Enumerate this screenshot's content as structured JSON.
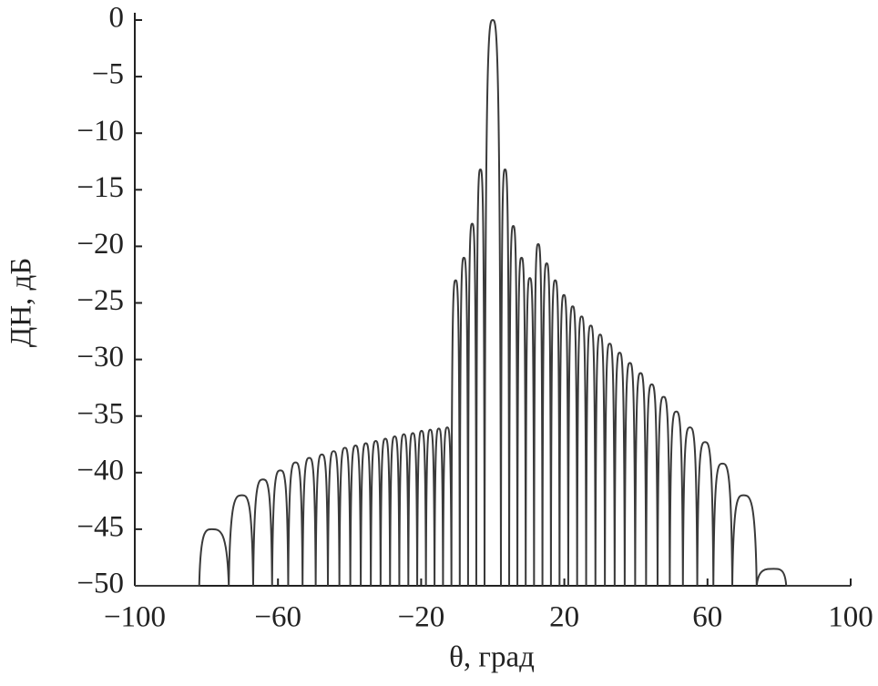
{
  "chart_data": {
    "type": "line",
    "xlabel": "θ, град",
    "ylabel": "ДН, дБ",
    "x": [
      -100,
      -82,
      -78.5,
      -73.74,
      -70.05,
      -66.93,
      -64.16,
      -61.64,
      -59.32,
      -57.14,
      -55.08,
      -53.13,
      -51.26,
      -49.46,
      -47.73,
      -46.05,
      -44.43,
      -42.84,
      -41.3,
      -39.79,
      -38.32,
      -36.87,
      -35.45,
      -34.06,
      -32.68,
      -31.33,
      -30,
      -28.69,
      -27.39,
      -26.1,
      -24.83,
      -23.58,
      -22.33,
      -21.1,
      -19.88,
      -18.66,
      -17.46,
      -16.26,
      -15.07,
      -13.89,
      -12.71,
      -11.54,
      -10.37,
      -9.21,
      -8.05,
      -6.89,
      -5.74,
      -4.59,
      -3.44,
      -2.29,
      0,
      2.29,
      3.44,
      4.59,
      5.74,
      6.89,
      8.05,
      9.21,
      10.37,
      11.54,
      12.71,
      13.89,
      15.07,
      16.26,
      17.46,
      18.66,
      19.88,
      21.1,
      22.33,
      23.58,
      24.83,
      26.1,
      27.39,
      28.69,
      30,
      31.33,
      32.68,
      34.06,
      35.45,
      36.87,
      38.32,
      39.79,
      41.3,
      42.84,
      44.43,
      46.05,
      47.73,
      49.46,
      51.26,
      53.13,
      55.08,
      57.14,
      59.32,
      61.64,
      64.16,
      66.93,
      70.05,
      73.74,
      78.5,
      82,
      100
    ],
    "values": [
      -50,
      -50,
      -45,
      -50,
      -42,
      -50,
      -40.6,
      -50,
      -39.8,
      -50,
      -39.1,
      -50,
      -38.7,
      -50,
      -38.4,
      -50,
      -38.1,
      -50,
      -37.8,
      -50,
      -37.6,
      -50,
      -37.4,
      -50,
      -37.2,
      -50,
      -37,
      -50,
      -36.8,
      -50,
      -36.6,
      -50,
      -36.5,
      -50,
      -36.3,
      -50,
      -36.2,
      -50,
      -36.1,
      -50,
      -36,
      -50,
      -23,
      -50,
      -21,
      -50,
      -18,
      -50,
      -13.2,
      -50,
      0,
      -50,
      -13.2,
      -50,
      -18.2,
      -50,
      -21,
      -50,
      -22.8,
      -50,
      -19.8,
      -50,
      -21.5,
      -50,
      -23,
      -50,
      -24.3,
      -50,
      -25.3,
      -50,
      -26.2,
      -50,
      -27,
      -50,
      -27.8,
      -50,
      -28.6,
      -50,
      -29.4,
      -50,
      -30.3,
      -50,
      -31.2,
      -50,
      -32.2,
      -50,
      -33.3,
      -50,
      -34.6,
      -50,
      -36,
      -50,
      -37.3,
      -50,
      -39.2,
      -50,
      -42,
      -50,
      -48.5,
      -50,
      -50
    ],
    "color": "#3a3a3a",
    "xlim": [
      -100,
      100
    ],
    "xticks": [
      {
        "value": -100,
        "label": "−100"
      },
      {
        "value": -60,
        "label": "−60"
      },
      {
        "value": -20,
        "label": "−20"
      },
      20,
      60,
      100
    ],
    "ylim": [
      -50,
      0
    ],
    "yticks": [
      0,
      {
        "value": -5,
        "label": "−5"
      },
      {
        "value": -10,
        "label": "−10"
      },
      {
        "value": -15,
        "label": "−15"
      },
      {
        "value": -20,
        "label": "−20"
      },
      {
        "value": -25,
        "label": "−25"
      },
      {
        "value": -30,
        "label": "−30"
      },
      {
        "value": -35,
        "label": "−35"
      },
      {
        "value": -40,
        "label": "−40"
      },
      {
        "value": -45,
        "label": "−45"
      },
      {
        "value": -50,
        "label": "−50"
      }
    ],
    "grid": false
  }
}
